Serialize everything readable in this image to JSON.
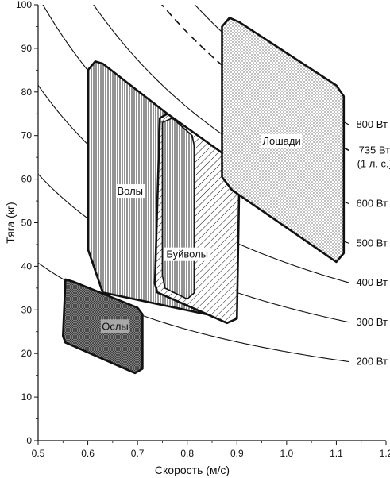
{
  "chart_data": {
    "type": "area",
    "xlabel": "Скорость (м/с)",
    "ylabel": "Тяга (кг)",
    "xlim": [
      0.5,
      1.2
    ],
    "ylim": [
      0,
      100
    ],
    "x_ticks": [
      "0.5",
      "0.6",
      "0.7",
      "0.8",
      "0.9",
      "1.0",
      "1.1",
      "1.2"
    ],
    "y_ticks": [
      "0",
      "10",
      "20",
      "30",
      "40",
      "50",
      "60",
      "70",
      "80",
      "90",
      "100"
    ],
    "power_curves": [
      {
        "label": "200 Вт",
        "watts": 200,
        "dashed": false
      },
      {
        "label": "300 Вт",
        "watts": 300,
        "dashed": false
      },
      {
        "label": "400 Вт",
        "watts": 400,
        "dashed": false
      },
      {
        "label": "500 Вт",
        "watts": 500,
        "dashed": false
      },
      {
        "label": "600 Вт",
        "watts": 600,
        "dashed": false
      },
      {
        "label": "735 Вт",
        "label2": "(1 л. с.)",
        "watts": 735,
        "dashed": true
      },
      {
        "label": "800 Вт",
        "watts": 800,
        "dashed": false
      }
    ],
    "regions": [
      {
        "name": "Ослы",
        "pattern": "crosshatch",
        "label_at": [
          0.655,
          26
        ],
        "points": [
          [
            0.555,
            37
          ],
          [
            0.57,
            36.5
          ],
          [
            0.7,
            30.5
          ],
          [
            0.71,
            29
          ],
          [
            0.71,
            16.5
          ],
          [
            0.695,
            15.5
          ],
          [
            0.555,
            22.5
          ],
          [
            0.55,
            24
          ]
        ]
      },
      {
        "name": "Волы",
        "pattern": "vertical",
        "label_at": [
          0.685,
          57
        ],
        "points": [
          [
            0.6,
            85
          ],
          [
            0.615,
            87
          ],
          [
            0.63,
            86.5
          ],
          [
            0.89,
            63.5
          ],
          [
            0.9,
            61.5
          ],
          [
            0.9,
            30
          ],
          [
            0.88,
            28
          ],
          [
            0.63,
            34
          ],
          [
            0.6,
            44
          ]
        ]
      },
      {
        "name": "Буйволы",
        "pattern": "diagonal",
        "label_at": [
          0.8,
          42.5
        ],
        "points": [
          [
            0.745,
            74
          ],
          [
            0.76,
            75
          ],
          [
            0.895,
            64
          ],
          [
            0.905,
            61
          ],
          [
            0.9,
            28
          ],
          [
            0.88,
            27
          ],
          [
            0.74,
            34
          ],
          [
            0.735,
            36
          ]
        ]
      },
      {
        "name": "Лошади",
        "pattern": "dots",
        "label_at": [
          0.99,
          68.5
        ],
        "points": [
          [
            0.87,
            95
          ],
          [
            0.885,
            97
          ],
          [
            0.905,
            96
          ],
          [
            1.1,
            81.5
          ],
          [
            1.115,
            79
          ],
          [
            1.115,
            43
          ],
          [
            1.1,
            41
          ],
          [
            0.89,
            57.5
          ],
          [
            0.87,
            60.5
          ]
        ]
      }
    ],
    "overlay_regions": [
      {
        "name": "Волы-перекрытие",
        "pattern": "vertical",
        "points": [
          [
            0.75,
            73
          ],
          [
            0.77,
            74
          ],
          [
            0.81,
            70
          ],
          [
            0.815,
            67
          ],
          [
            0.815,
            34
          ],
          [
            0.8,
            32.5
          ],
          [
            0.755,
            35
          ],
          [
            0.75,
            38
          ]
        ]
      }
    ],
    "grid": false,
    "legend": "none"
  }
}
